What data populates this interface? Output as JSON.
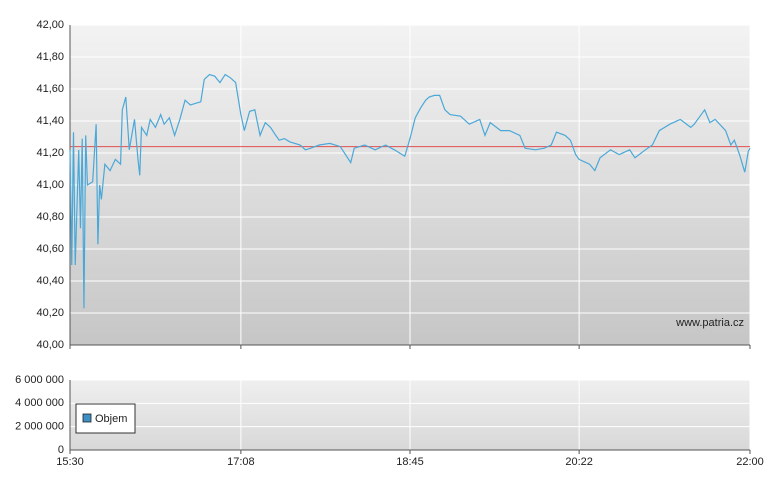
{
  "chart_data": [
    {
      "type": "line",
      "x": [
        "15:30",
        "15:31",
        "15:32",
        "15:33",
        "15:35",
        "15:36",
        "15:37",
        "15:38",
        "15:39",
        "15:40",
        "15:43",
        "15:45",
        "15:46",
        "15:47",
        "15:48",
        "15:50",
        "15:53",
        "15:56",
        "15:59",
        "16:00",
        "16:02",
        "16:04",
        "16:07",
        "16:09",
        "16:10",
        "16:11",
        "16:14",
        "16:16",
        "16:19",
        "16:22",
        "16:24",
        "16:27",
        "16:30",
        "16:33",
        "16:36",
        "16:39",
        "16:45",
        "16:47",
        "16:50",
        "16:53",
        "16:56",
        "16:59",
        "17:02",
        "17:05",
        "17:08",
        "17:10",
        "17:13",
        "17:16",
        "17:19",
        "17:22",
        "17:25",
        "17:28",
        "17:30",
        "17:33",
        "17:36",
        "17:42",
        "17:45",
        "17:48",
        "17:53",
        "17:59",
        "18:05",
        "18:08",
        "18:11",
        "18:13",
        "18:19",
        "18:25",
        "18:31",
        "18:36",
        "18:42",
        "18:45",
        "18:48",
        "18:51",
        "18:54",
        "18:56",
        "18:59",
        "19:02",
        "19:05",
        "19:08",
        "19:14",
        "19:19",
        "19:25",
        "19:28",
        "19:31",
        "19:37",
        "19:42",
        "19:48",
        "19:51",
        "19:57",
        "20:02",
        "20:06",
        "20:09",
        "20:14",
        "20:17",
        "20:20",
        "20:22",
        "20:28",
        "20:31",
        "20:34",
        "20:40",
        "20:45",
        "20:51",
        "20:54",
        "21:00",
        "21:04",
        "21:08",
        "21:14",
        "21:20",
        "21:26",
        "21:28",
        "21:34",
        "21:37",
        "21:40",
        "21:46",
        "21:49",
        "21:51",
        "21:54",
        "21:57",
        "21:59",
        "22:00"
      ],
      "values": [
        41.22,
        40.5,
        41.33,
        40.5,
        41.22,
        40.73,
        41.29,
        40.23,
        41.31,
        41.0,
        41.02,
        41.38,
        40.63,
        41.0,
        40.91,
        41.13,
        41.09,
        41.16,
        41.13,
        41.47,
        41.55,
        41.22,
        41.41,
        41.16,
        41.06,
        41.36,
        41.31,
        41.41,
        41.36,
        41.44,
        41.38,
        41.42,
        41.31,
        41.41,
        41.53,
        41.5,
        41.52,
        41.66,
        41.69,
        41.68,
        41.64,
        41.69,
        41.67,
        41.64,
        41.44,
        41.34,
        41.46,
        41.47,
        41.31,
        41.39,
        41.36,
        41.31,
        41.28,
        41.29,
        41.27,
        41.25,
        41.22,
        41.23,
        41.25,
        41.26,
        41.24,
        41.19,
        41.14,
        41.23,
        41.25,
        41.22,
        41.25,
        41.22,
        41.18,
        41.29,
        41.42,
        41.48,
        41.53,
        41.55,
        41.56,
        41.56,
        41.47,
        41.44,
        41.43,
        41.38,
        41.41,
        41.31,
        41.39,
        41.34,
        41.34,
        41.31,
        41.23,
        41.22,
        41.23,
        41.25,
        41.33,
        41.31,
        41.28,
        41.19,
        41.16,
        41.13,
        41.09,
        41.17,
        41.22,
        41.19,
        41.22,
        41.17,
        41.22,
        41.25,
        41.34,
        41.38,
        41.41,
        41.36,
        41.38,
        41.47,
        41.39,
        41.41,
        41.34,
        41.25,
        41.28,
        41.19,
        41.08,
        41.21,
        41.23
      ],
      "color": "#4aa8d8",
      "xlim": [
        "15:30",
        "22:00"
      ],
      "ylim": [
        40,
        42
      ],
      "yticks": [
        {
          "value": 40,
          "label": "40,00"
        },
        {
          "value": 40.2,
          "label": "40,20"
        },
        {
          "value": 40.4,
          "label": "40,40"
        },
        {
          "value": 40.6,
          "label": "40,60"
        },
        {
          "value": 40.8,
          "label": "40,80"
        },
        {
          "value": 41,
          "label": "41,00"
        },
        {
          "value": 41.2,
          "label": "41,20"
        },
        {
          "value": 41.4,
          "label": "41,40"
        },
        {
          "value": 41.6,
          "label": "41,60"
        },
        {
          "value": 41.8,
          "label": "41,80"
        },
        {
          "value": 42,
          "label": "42,00"
        }
      ],
      "reference_line": {
        "value": 41.24,
        "color": "#e05050"
      },
      "annotation": "www.patria.cz",
      "grid": true
    },
    {
      "type": "bar",
      "series": [
        {
          "name": "Objem",
          "color": "#3d8fc6",
          "values": []
        }
      ],
      "xlim": [
        "15:30",
        "22:00"
      ],
      "xticks": [
        "15:30",
        "17:08",
        "18:45",
        "20:22",
        "22:00"
      ],
      "ylim": [
        0,
        6000000
      ],
      "yticks": [
        0,
        {
          "value": 2000000,
          "label": "2 000 000"
        },
        {
          "value": 4000000,
          "label": "4 000 000"
        },
        {
          "value": 6000000,
          "label": "6 000 000"
        }
      ],
      "grid": true
    }
  ]
}
